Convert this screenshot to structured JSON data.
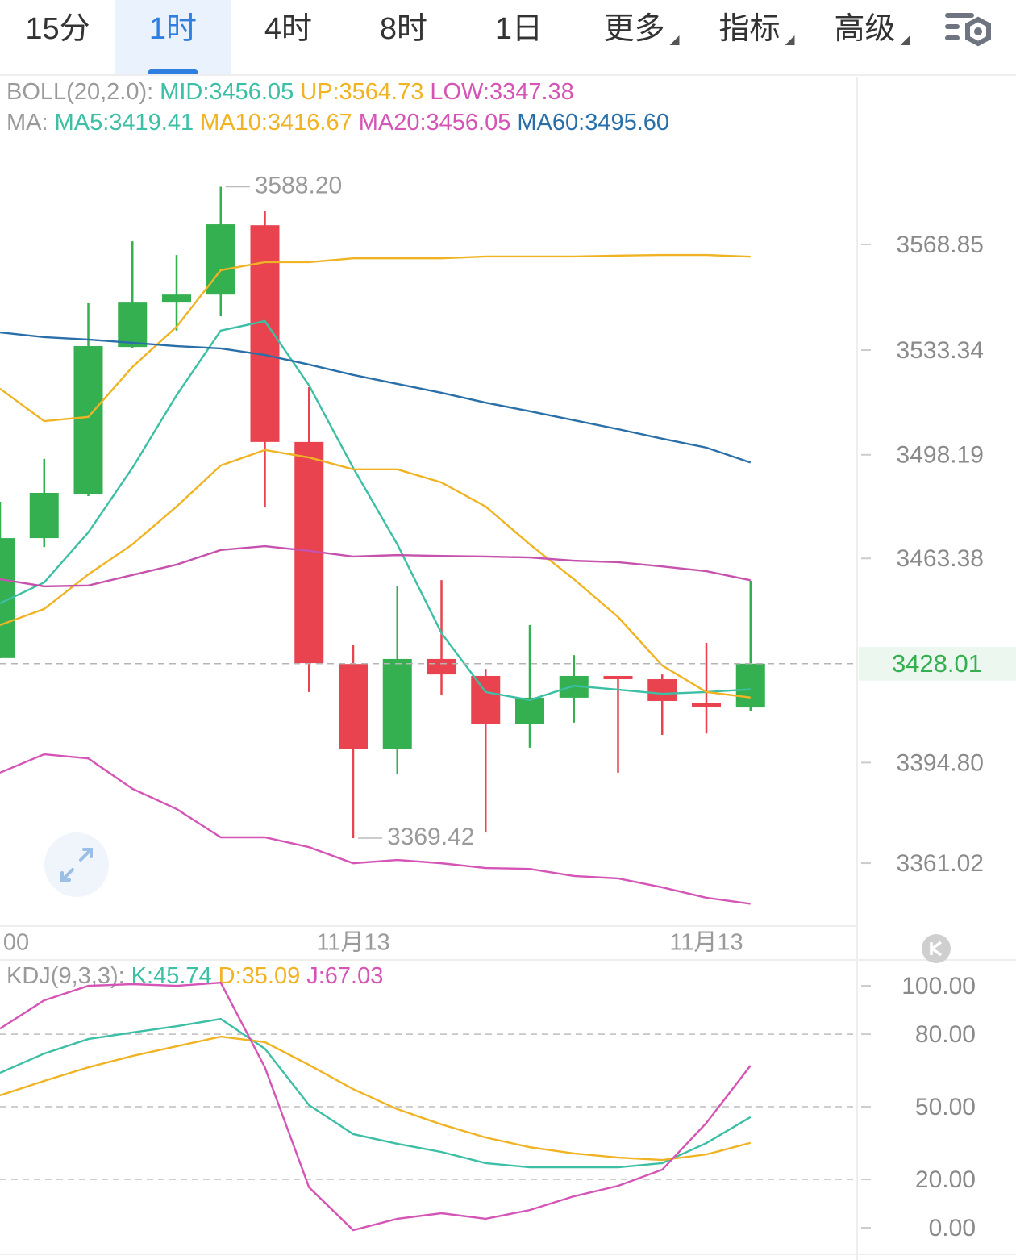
{
  "tabs": {
    "items": [
      {
        "text": "15分"
      },
      {
        "text": "1时"
      },
      {
        "text": "4时"
      },
      {
        "text": "8时"
      },
      {
        "text": "1日"
      },
      {
        "text": "更多",
        "dropdown": true
      },
      {
        "text": "指标",
        "dropdown": true
      },
      {
        "text": "高级",
        "dropdown": true
      }
    ],
    "active": 1,
    "active_color": "#2f7fe0",
    "active_background": "#e9f2fd"
  },
  "chart_data": [
    {
      "type": "candlestick",
      "legend_rows": [
        {
          "label": "BOLL(20,2.0):",
          "color": "#9a9a9a",
          "items": [
            {
              "text": "MID:3456.05",
              "color": "#3cbfa5"
            },
            {
              "text": "UP:3564.73",
              "color": "#f0b323"
            },
            {
              "text": "LOW:3347.38",
              "color": "#d455b5"
            }
          ]
        },
        {
          "label": "MA:",
          "color": "#9a9a9a",
          "items": [
            {
              "text": "MA5:3419.41",
              "color": "#3cbfa5"
            },
            {
              "text": "MA10:3416.67",
              "color": "#f0b323"
            },
            {
              "text": "MA20:3456.05",
              "color": "#d455b5"
            },
            {
              "text": "MA60:3495.60",
              "color": "#2a6fa8"
            }
          ]
        }
      ],
      "categories": [
        "00",
        null,
        null,
        null,
        null,
        null,
        null,
        null,
        "11月13",
        null,
        null,
        null,
        null,
        null,
        null,
        null,
        "11月13",
        null
      ],
      "open": [
        3429.9,
        3470.2,
        3485.1,
        3534.4,
        3549.3,
        3552.0,
        3575.3,
        3502.5,
        3427.9,
        3399.5,
        3429.6,
        3423.9,
        3407.9,
        3416.6,
        3423.9,
        3422.8,
        3414.9,
        3413.3
      ],
      "high": [
        3482.4,
        3496.8,
        3549.1,
        3569.9,
        3565.3,
        3588.2,
        3580.2,
        3520.9,
        3434.2,
        3454.0,
        3456.1,
        3426.3,
        3441.0,
        3430.9,
        3423.9,
        3424.4,
        3435.0,
        3455.9
      ],
      "low": [
        3429.9,
        3467.2,
        3484.3,
        3533.9,
        3539.9,
        3544.7,
        3480.5,
        3418.5,
        3369.42,
        3390.8,
        3417.4,
        3371.3,
        3399.8,
        3408.2,
        3391.4,
        3404.1,
        3404.6,
        3412.0
      ],
      "close": [
        3470.2,
        3485.4,
        3534.7,
        3549.3,
        3552.0,
        3575.6,
        3502.5,
        3428.2,
        3399.5,
        3429.6,
        3424.4,
        3407.9,
        3416.6,
        3423.9,
        3422.8,
        3415.5,
        3413.6,
        3428.01
      ],
      "up_color": "#35b051",
      "down_color": "#e8434f",
      "series": [
        {
          "color": "#f0b323",
          "values": [
            3520.4,
            3509.5,
            3510.9,
            3527.7,
            3541.2,
            3560.2,
            3562.9,
            3562.9,
            3564.2,
            3564.2,
            3564.2,
            3564.8,
            3564.8,
            3564.8,
            3565.1,
            3565.3,
            3565.3,
            3564.73
          ]
        },
        {
          "color": "#d455b5",
          "values": [
            3391.4,
            3397.6,
            3396.2,
            3386.0,
            3379.2,
            3369.7,
            3369.7,
            3366.4,
            3361.0,
            3362.1,
            3361.0,
            3359.4,
            3359.1,
            3356.7,
            3355.9,
            3352.9,
            3349.4,
            3347.38
          ]
        },
        {
          "color": "#3cbfa5",
          "values": [
            3448.3,
            3455.3,
            3472.1,
            3493.8,
            3518.2,
            3539.9,
            3543.1,
            3521.5,
            3493.8,
            3468.1,
            3438.3,
            3418.5,
            3415.8,
            3420.6,
            3419.3,
            3417.9,
            3418.5,
            3419.41
          ]
        },
        {
          "color": "#f0b323",
          "values": [
            3441.0,
            3446.4,
            3458.0,
            3468.1,
            3480.8,
            3494.6,
            3499.8,
            3497.3,
            3493.3,
            3493.3,
            3488.9,
            3480.8,
            3468.1,
            3456.4,
            3443.7,
            3427.4,
            3418.5,
            3416.67
          ]
        },
        {
          "color": "#c652ad",
          "values": [
            3456.4,
            3454.0,
            3454.3,
            3457.8,
            3461.3,
            3466.2,
            3467.5,
            3465.9,
            3464.0,
            3464.5,
            3464.2,
            3464.0,
            3463.7,
            3462.6,
            3462.1,
            3460.7,
            3459.1,
            3456.05
          ]
        },
        {
          "color": "#2a6fa8",
          "values": [
            3539.3,
            3537.7,
            3536.9,
            3535.8,
            3534.7,
            3533.9,
            3531.7,
            3528.5,
            3525.0,
            3522.0,
            3519.0,
            3515.7,
            3512.8,
            3509.8,
            3506.8,
            3503.6,
            3500.6,
            3495.6
          ]
        }
      ],
      "ylim": [
        3339.9,
        3625.2
      ],
      "yticks": [
        3568.85,
        3533.34,
        3498.19,
        3463.38,
        {
          "value": 3394.8,
          "label": "3394.80"
        },
        3361.02
      ],
      "grid": false,
      "max_label": {
        "value": 3588.2,
        "label": "3588.20"
      },
      "min_label": {
        "value": 3369.42,
        "label": "3369.42"
      },
      "last_price": 3428.01,
      "last_price_color": "#35b051"
    },
    {
      "type": "line",
      "legend_rows": [
        {
          "label": "KDJ(9,3,3):",
          "color": "#9a9a9a",
          "items": [
            {
              "text": "K:45.74",
              "color": "#3cbfa5"
            },
            {
              "text": "D:35.09",
              "color": "#f0b323"
            },
            {
              "text": "J:67.03",
              "color": "#d455b5"
            }
          ]
        }
      ],
      "series": [
        {
          "color": "#3cbfa5",
          "values": [
            64.0,
            72.0,
            78.0,
            80.7,
            83.3,
            86.3,
            74.0,
            50.7,
            38.7,
            34.7,
            31.3,
            26.7,
            25.0,
            25.0,
            25.0,
            26.7,
            35.0,
            45.74
          ]
        },
        {
          "color": "#f0b323",
          "values": [
            54.7,
            60.7,
            66.3,
            71.0,
            75.0,
            79.0,
            76.7,
            67.3,
            57.3,
            49.0,
            42.7,
            37.3,
            33.3,
            30.7,
            29.0,
            28.0,
            30.3,
            35.09
          ]
        },
        {
          "color": "#d455b5",
          "values": [
            82.3,
            94.0,
            100.0,
            100.7,
            100.0,
            101.3,
            66.3,
            16.7,
            -1.0,
            3.7,
            6.0,
            3.7,
            7.3,
            13.0,
            17.3,
            24.0,
            43.3,
            67.03
          ]
        }
      ],
      "ylim": [
        -11,
        110.7
      ],
      "yticks": [
        {
          "value": 100,
          "label": "100.00"
        },
        {
          "value": 80,
          "label": "80.00"
        },
        {
          "value": 50,
          "label": "50.00"
        },
        {
          "value": 20,
          "label": "20.00"
        },
        {
          "value": 0,
          "label": "0.00"
        }
      ],
      "grid": true
    }
  ]
}
